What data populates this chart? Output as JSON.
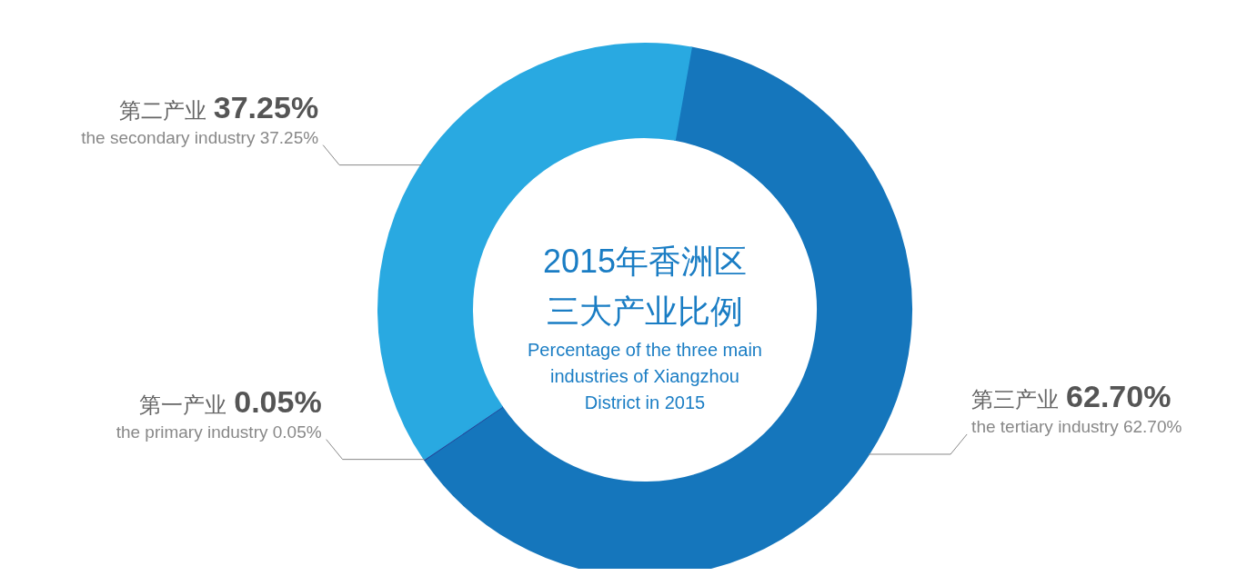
{
  "chart_data": {
    "type": "donut",
    "title": "2015年香洲区三大产业比例",
    "subtitle": "Percentage of the three main industries of Xiangzhou District in 2015",
    "categories": [
      "第三产业",
      "第一产业",
      "第二产业"
    ],
    "values": [
      62.7,
      0.05,
      37.25
    ],
    "colors": [
      "#1576bc",
      "#2b3990",
      "#29a9e1"
    ],
    "value_labels": [
      "62.70%",
      "0.05%",
      "37.25%"
    ],
    "annotations": [
      "the tertiary industry 62.70%",
      "the primary industry 0.05%",
      "the secondary industry 37.25%"
    ]
  }
}
